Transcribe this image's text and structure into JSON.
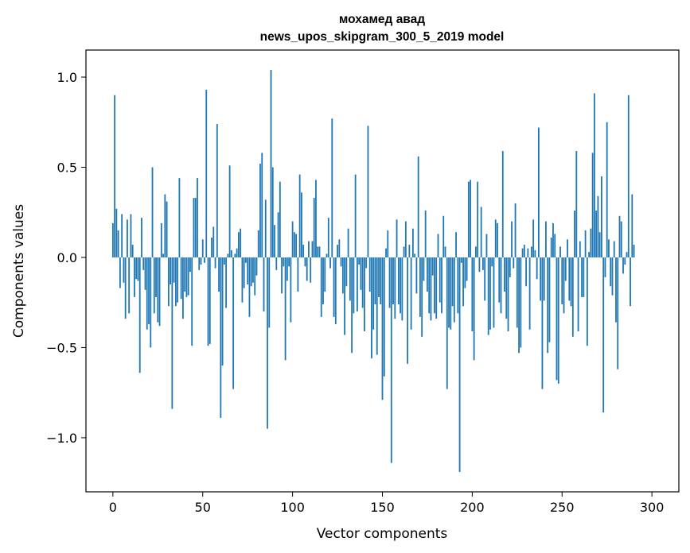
{
  "chart_data": {
    "type": "bar",
    "title": "мохамед авад",
    "subtitle": "news_upos_skipgram_300_5_2019 model",
    "xlabel": "Vector components",
    "ylabel": "Components values",
    "xlim": [
      -15,
      315
    ],
    "ylim": [
      -1.3,
      1.15
    ],
    "xticks": [
      0,
      50,
      100,
      150,
      200,
      250,
      300
    ],
    "yticks": [
      -1.0,
      -0.5,
      0.0,
      0.5,
      1.0
    ],
    "ytick_labels": [
      "−1.0",
      "−0.5",
      "0.0",
      "0.5",
      "1.0"
    ],
    "grid": false,
    "legend": "none",
    "bar_color": "#1f77b4",
    "series": [
      {
        "values": [
          0.19,
          0.9,
          0.27,
          0.15,
          -0.17,
          0.24,
          -0.14,
          -0.34,
          0.21,
          -0.31,
          0.24,
          0.07,
          -0.22,
          -0.12,
          -0.13,
          -0.64,
          0.22,
          -0.07,
          -0.18,
          -0.4,
          -0.37,
          -0.5,
          0.5,
          -0.31,
          -0.22,
          -0.36,
          -0.38,
          0.19,
          0.02,
          0.35,
          0.31,
          -0.27,
          -0.15,
          -0.84,
          -0.14,
          -0.27,
          -0.25,
          0.44,
          -0.23,
          -0.34,
          -0.19,
          -0.22,
          -0.21,
          -0.08,
          -0.49,
          0.33,
          0.33,
          0.44,
          -0.07,
          -0.04,
          0.1,
          -0.03,
          0.93,
          -0.49,
          -0.48,
          0.11,
          0.17,
          -0.06,
          0.74,
          -0.19,
          -0.89,
          -0.6,
          -0.04,
          -0.28,
          0.02,
          0.51,
          0.04,
          -0.73,
          0.02,
          0.05,
          0.14,
          0.16,
          -0.25,
          -0.17,
          -0.03,
          -0.15,
          -0.33,
          -0.16,
          -0.14,
          -0.21,
          -0.1,
          0.15,
          0.52,
          0.58,
          -0.3,
          0.32,
          -0.95,
          -0.39,
          1.04,
          0.5,
          0.18,
          -0.07,
          0.25,
          0.42,
          -0.2,
          -0.05,
          -0.57,
          -0.13,
          -0.05,
          -0.36,
          0.2,
          0.14,
          0.13,
          -0.19,
          0.46,
          0.36,
          0.07,
          -0.05,
          -0.13,
          0.09,
          -0.14,
          0.09,
          0.33,
          0.43,
          0.06,
          0.06,
          -0.33,
          -0.26,
          -0.19,
          0.02,
          0.22,
          -0.06,
          0.77,
          -0.33,
          -0.37,
          0.07,
          0.1,
          -0.05,
          -0.2,
          -0.43,
          -0.16,
          0.16,
          -0.24,
          -0.53,
          -0.31,
          0.46,
          -0.3,
          -0.04,
          -0.18,
          -0.28,
          -0.41,
          -0.06,
          0.73,
          -0.19,
          -0.56,
          -0.4,
          -0.26,
          -0.54,
          -0.22,
          -0.26,
          -0.79,
          -0.66,
          0.05,
          0.15,
          -0.28,
          -1.14,
          -0.26,
          -0.34,
          0.21,
          -0.26,
          -0.31,
          -0.35,
          0.06,
          0.2,
          -0.59,
          0.07,
          -0.4,
          0.16,
          0.02,
          -0.2,
          0.56,
          -0.33,
          -0.44,
          -0.13,
          0.26,
          -0.19,
          -0.31,
          -0.35,
          -0.1,
          -0.31,
          -0.34,
          0.13,
          -0.25,
          -0.31,
          0.23,
          0.06,
          -0.73,
          -0.39,
          -0.4,
          -0.27,
          -0.36,
          0.14,
          -0.31,
          -1.19,
          -0.03,
          -0.27,
          -0.17,
          -0.13,
          0.42,
          0.43,
          -0.41,
          -0.57,
          0.06,
          0.42,
          -0.08,
          0.28,
          -0.07,
          -0.24,
          0.13,
          -0.43,
          -0.4,
          -0.05,
          -0.39,
          0.21,
          0.19,
          -0.25,
          -0.31,
          0.59,
          -0.19,
          -0.34,
          -0.41,
          -0.11,
          0.2,
          -0.06,
          0.3,
          -0.39,
          -0.53,
          -0.5,
          0.05,
          0.07,
          -0.16,
          0.05,
          -0.4,
          0.06,
          0.21,
          0.04,
          -0.12,
          0.72,
          -0.24,
          -0.73,
          -0.24,
          0.2,
          -0.53,
          -0.47,
          0.11,
          0.19,
          0.13,
          -0.68,
          -0.7,
          0.06,
          -0.26,
          -0.31,
          -0.13,
          0.1,
          -0.24,
          -0.27,
          -0.44,
          0.26,
          0.59,
          -0.41,
          0.09,
          -0.22,
          -0.22,
          0.15,
          -0.49,
          0.03,
          0.16,
          0.58,
          0.91,
          0.26,
          0.34,
          0.14,
          0.45,
          -0.86,
          -0.11,
          0.75,
          0.1,
          -0.16,
          -0.21,
          0.09,
          -0.36,
          -0.62,
          0.23,
          0.2,
          -0.09,
          -0.04,
          0.03,
          0.9,
          -0.27,
          0.35,
          0.07
        ]
      }
    ]
  }
}
